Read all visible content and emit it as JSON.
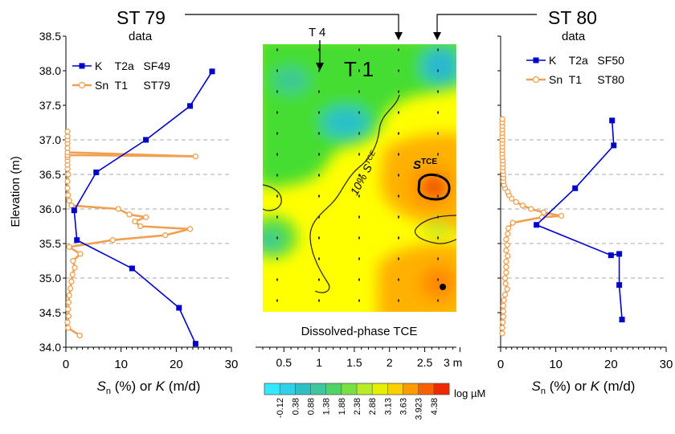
{
  "labels": {
    "st79": "ST 79",
    "st79_sub": "data",
    "st80": "ST 80",
    "st80_sub": "data",
    "t4": "T 4",
    "t1": "T 1",
    "contour_label": "10% S",
    "contour_label_sup": "TCE",
    "s_tce": "S",
    "s_tce_sup": "TCE",
    "map_caption": "Dissolved-phase TCE",
    "colorbar_unit": "log µM"
  },
  "colors": {
    "k_series": "#0000cc",
    "sn_series": "#f0a050",
    "map_green": "#33dd33",
    "map_yellow": "#ffff00",
    "map_orange": "#ff9900",
    "gridline": "#aaaaaa"
  },
  "chart_data": [
    {
      "type": "line",
      "panel": "left",
      "ylabel": "Elevation  (m)",
      "xlabel_parts": [
        "S",
        "n",
        " (%) or ",
        "K",
        " (m/d)"
      ],
      "xlim": [
        0,
        30
      ],
      "ylim": [
        34.0,
        38.5
      ],
      "xticks": [
        "0",
        "10",
        "20",
        "30"
      ],
      "yticks": [
        "34.0",
        "34.5",
        "35.0",
        "35.5",
        "36.0",
        "36.5",
        "37.0",
        "37.5",
        "38.0",
        "38.5"
      ],
      "gridlines_y": [
        35.0,
        35.5,
        36.0,
        36.5,
        37.0
      ],
      "legend": "top-left",
      "series": [
        {
          "name": "K    T2a   SF49",
          "x": [
            23.5,
            20.5,
            12.0,
            2.0,
            1.5,
            5.5,
            14.5,
            22.5,
            26.5
          ],
          "y": [
            34.05,
            34.57,
            35.14,
            35.55,
            35.98,
            36.53,
            37.0,
            37.49,
            37.99
          ]
        },
        {
          "name": "Sn  T1     ST79",
          "x": [
            2.5,
            0.4,
            0.3,
            0.5,
            0.4,
            0.5,
            0.6,
            0.8,
            1.0,
            1.2,
            1.6,
            1.3,
            2.6,
            0.6,
            8.5,
            18.0,
            22.5,
            13.5,
            12.5,
            14.5,
            11.5,
            9.5,
            1.0,
            0.6,
            0.4,
            0.3,
            0.3,
            0.4,
            0.3,
            0.3,
            0.3,
            0.3,
            0.3,
            23.5,
            0.3,
            0.3,
            0.3,
            0.3,
            0.3,
            0.3
          ],
          "y": [
            34.17,
            34.28,
            34.36,
            34.45,
            34.55,
            34.65,
            34.75,
            34.85,
            34.95,
            35.05,
            35.15,
            35.25,
            35.35,
            35.45,
            35.55,
            35.62,
            35.71,
            35.75,
            35.82,
            35.88,
            35.92,
            36.0,
            36.05,
            36.12,
            36.2,
            36.3,
            36.4,
            36.5,
            36.58,
            36.64,
            36.7,
            36.75,
            36.78,
            36.76,
            36.82,
            36.88,
            36.95,
            37.0,
            37.05,
            37.12
          ]
        }
      ]
    },
    {
      "type": "line",
      "panel": "right",
      "xlabel_parts": [
        "S",
        "n",
        " (%) or ",
        "K",
        " (m/d)"
      ],
      "xlim": [
        0,
        30
      ],
      "ylim": [
        34.0,
        38.5
      ],
      "xticks": [
        "0",
        "10",
        "20",
        "30"
      ],
      "yticks": [
        "34.0",
        "34.5",
        "35.0",
        "35.5",
        "36.0",
        "36.5",
        "37.0",
        "37.5",
        "38.0",
        "38.5"
      ],
      "gridlines_y": [
        35.0,
        35.5,
        36.0,
        36.5,
        37.0
      ],
      "legend": "top-right",
      "series": [
        {
          "name": "K    T2a   SF50",
          "x": [
            22.0,
            21.5,
            21.5,
            20.0,
            6.5,
            13.5,
            20.5,
            20.2
          ],
          "y": [
            34.4,
            34.9,
            35.35,
            35.33,
            35.77,
            36.3,
            36.92,
            37.28
          ]
        },
        {
          "name": "Sn  T1     ST80",
          "x": [
            0.3,
            0.3,
            0.4,
            0.5,
            0.5,
            0.5,
            0.6,
            0.8,
            1.2,
            0.9,
            0.8,
            1.0,
            1.0,
            1.0,
            1.3,
            1.0,
            1.2,
            1.0,
            1.3,
            1.4,
            2.2,
            7.5,
            11.0,
            7.8,
            5.5,
            4.0,
            2.8,
            2.0,
            1.5,
            1.3,
            0.8,
            0.6,
            0.5,
            0.5,
            0.5,
            0.4,
            0.4,
            0.4,
            0.4,
            0.3,
            0.3,
            0.3,
            0.3,
            0.3,
            0.3,
            0.3,
            0.3,
            0.3,
            0.3,
            0.3,
            0.3
          ],
          "y": [
            34.2,
            34.28,
            34.36,
            34.44,
            34.52,
            34.6,
            34.68,
            34.76,
            34.84,
            34.92,
            35.0,
            35.08,
            35.16,
            35.24,
            35.32,
            35.4,
            35.48,
            35.56,
            35.64,
            35.72,
            35.8,
            35.88,
            35.9,
            35.95,
            36.0,
            36.05,
            36.1,
            36.15,
            36.2,
            36.25,
            36.3,
            36.35,
            36.4,
            36.45,
            36.5,
            36.55,
            36.6,
            36.65,
            36.7,
            36.75,
            36.8,
            36.85,
            36.9,
            36.95,
            37.0,
            37.05,
            37.1,
            37.15,
            37.2,
            37.25,
            37.3
          ]
        }
      ]
    },
    {
      "type": "heatmap",
      "panel": "center",
      "title": "Dissolved-phase TCE",
      "xticks": [
        "0.5",
        "1",
        "1.5",
        "2",
        "2.5",
        "3 m"
      ],
      "xlim": [
        0.2,
        3.0
      ],
      "colorbar": {
        "ticks": [
          "-0.12",
          "0.38",
          "0.88",
          "1.38",
          "1.88",
          "2.38",
          "2.88",
          "3.13",
          "3.63",
          "3.923",
          "4.38"
        ],
        "colors": [
          "#33e8ff",
          "#30d0e8",
          "#2cc0c4",
          "#3cc89c",
          "#50d468",
          "#78e040",
          "#b8ec28",
          "#e4f000",
          "#fcd000",
          "#fc9c00",
          "#f86000",
          "#f02800"
        ],
        "unit": "log µM"
      }
    }
  ]
}
